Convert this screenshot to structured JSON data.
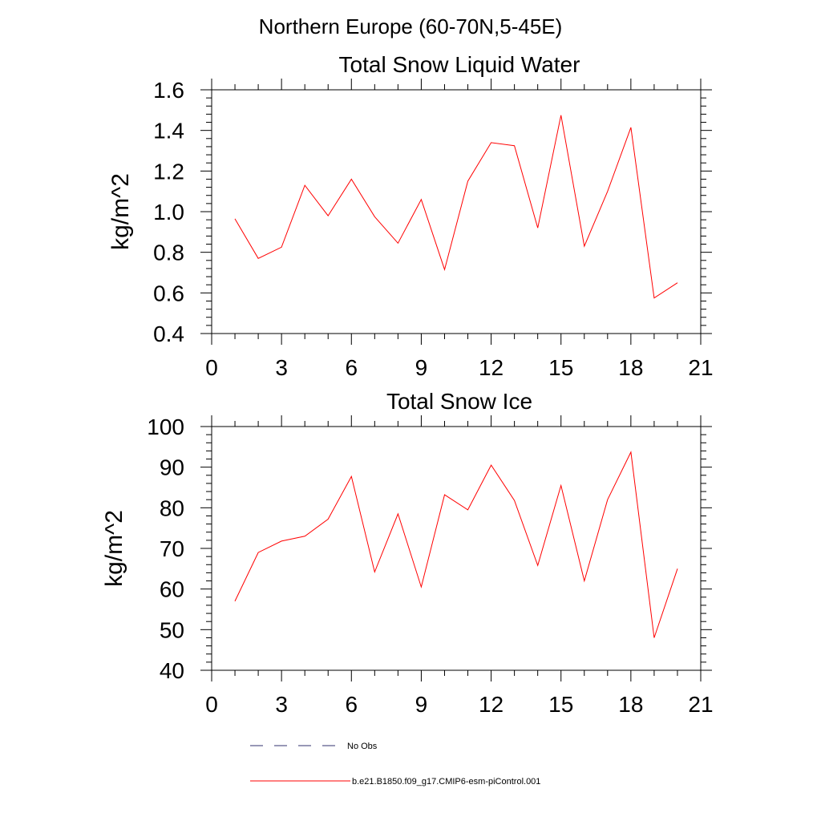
{
  "page_title": "Northern Europe (60-70N,5-45E)",
  "legend": {
    "obs_label": "No Obs",
    "model_label": "b.e21.B1850.f09_g17.CMIP6-esm-piControl.001",
    "obs_color": "#5a5a8a",
    "model_color": "#ff0000"
  },
  "chart_data": [
    {
      "type": "line",
      "title": "Total Snow Liquid Water",
      "xlabel": "",
      "ylabel": "kg/m^2",
      "xlim": [
        0,
        21
      ],
      "ylim": [
        0.4,
        1.6
      ],
      "xticks": [
        0,
        3,
        6,
        9,
        12,
        15,
        18,
        21
      ],
      "xtick_labels": [
        "0",
        "3",
        "6",
        "9",
        "12",
        "15",
        "18",
        "21"
      ],
      "yticks": [
        0.4,
        0.6,
        0.8,
        1.0,
        1.2,
        1.4,
        1.6
      ],
      "ytick_labels": [
        "0.4",
        "0.6",
        "0.8",
        "1.0",
        "1.2",
        "1.4",
        "1.6"
      ],
      "grid": false,
      "series": [
        {
          "name": "b.e21.B1850.f09_g17.CMIP6-esm-piControl.001",
          "color": "#ff0000",
          "x": [
            1,
            2,
            3,
            4,
            5,
            6,
            7,
            8,
            9,
            10,
            11,
            12,
            13,
            14,
            15,
            16,
            17,
            18,
            19,
            20
          ],
          "values": [
            0.965,
            0.77,
            0.825,
            1.13,
            0.98,
            1.16,
            0.975,
            0.845,
            1.06,
            0.715,
            1.15,
            1.34,
            1.325,
            0.92,
            1.475,
            0.83,
            1.1,
            1.415,
            0.575,
            0.65
          ]
        }
      ]
    },
    {
      "type": "line",
      "title": "Total Snow Ice",
      "xlabel": "",
      "ylabel": "kg/m^2",
      "xlim": [
        0,
        21
      ],
      "ylim": [
        40,
        100
      ],
      "xticks": [
        0,
        3,
        6,
        9,
        12,
        15,
        18,
        21
      ],
      "xtick_labels": [
        "0",
        "3",
        "6",
        "9",
        "12",
        "15",
        "18",
        "21"
      ],
      "yticks": [
        40,
        50,
        60,
        70,
        80,
        90,
        100
      ],
      "ytick_labels": [
        "40",
        "50",
        "60",
        "70",
        "80",
        "90",
        "100"
      ],
      "grid": false,
      "series": [
        {
          "name": "b.e21.B1850.f09_g17.CMIP6-esm-piControl.001",
          "color": "#ff0000",
          "x": [
            1,
            2,
            3,
            4,
            5,
            6,
            7,
            8,
            9,
            10,
            11,
            12,
            13,
            14,
            15,
            16,
            17,
            18,
            19,
            20
          ],
          "values": [
            57,
            69,
            71.8,
            73,
            77.2,
            87.7,
            64.2,
            78.5,
            60.5,
            83.2,
            79.5,
            90.5,
            81.8,
            65.8,
            85.5,
            62,
            82,
            93.7,
            48,
            65
          ]
        }
      ]
    }
  ]
}
